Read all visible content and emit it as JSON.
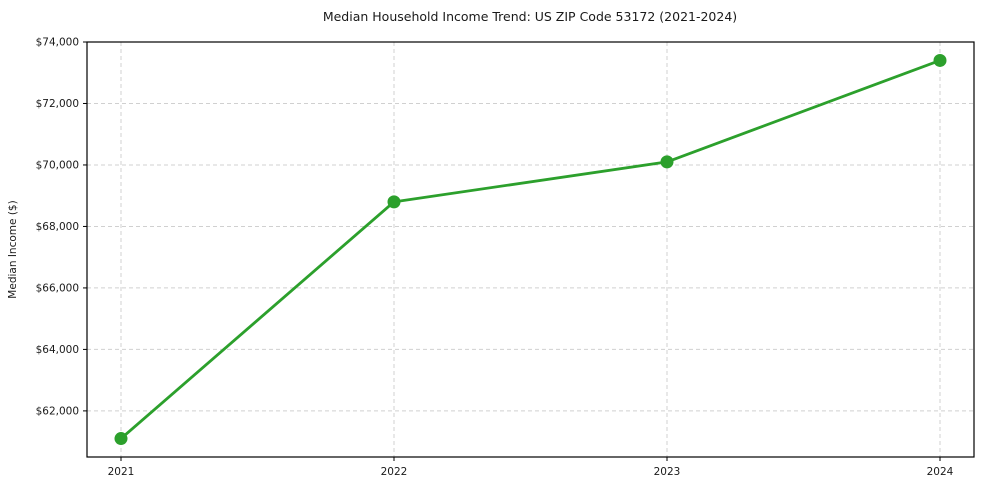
{
  "chart_data": {
    "type": "line",
    "title": "Median Household Income Trend: US ZIP Code 53172 (2021-2024)",
    "xlabel": "",
    "ylabel": "Median Income ($)",
    "x": [
      2021,
      2022,
      2023,
      2024
    ],
    "xtick_labels": [
      "2021",
      "2022",
      "2023",
      "2024"
    ],
    "series": [
      {
        "name": "Median Household Income",
        "values": [
          61100,
          68800,
          70100,
          73400
        ],
        "color": "#2ca02c",
        "marker": "circle"
      }
    ],
    "yticks": [
      62000,
      64000,
      66000,
      68000,
      70000,
      72000,
      74000
    ],
    "ytick_labels": [
      "$62,000",
      "$64,000",
      "$66,000",
      "$68,000",
      "$70,000",
      "$72,000",
      "$74,000"
    ],
    "ylim": [
      60500,
      74000
    ],
    "grid": true,
    "grid_style": "dashed",
    "legend_position": "none",
    "colors": {
      "line": "#2ca02c",
      "marker": "#2ca02c",
      "grid": "#d0d0d0",
      "axis": "#000000",
      "text": "#1a1a1a",
      "background": "#ffffff"
    }
  }
}
